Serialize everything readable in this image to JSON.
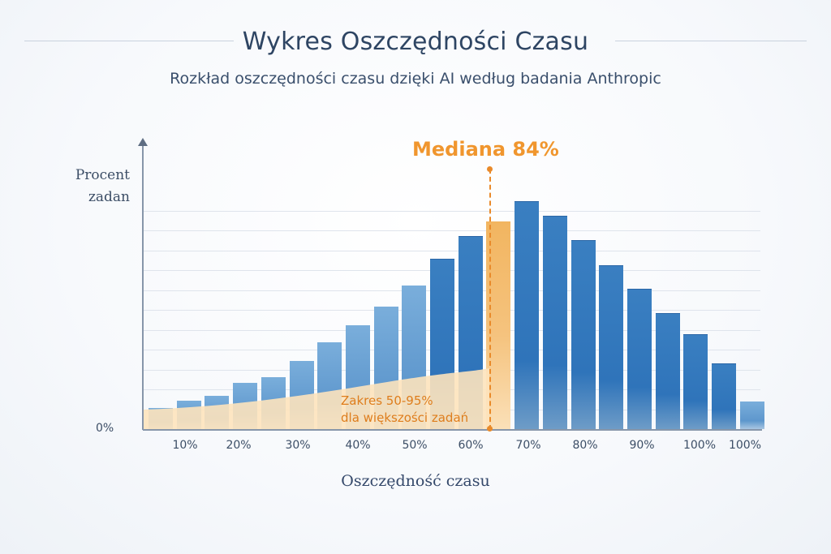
{
  "header": {
    "title": "Wykres Oszczędności Czasu",
    "subtitle": "Rozkład oszczędności czasu dzięki AI według badania Anthropic"
  },
  "annotations": {
    "median_label": "Mediana 84%",
    "range_label_line1": "Zakres 50-95%",
    "range_label_line2": "dla większości zadań"
  },
  "axes": {
    "y_label_line1": "Procent",
    "y_label_line2": "zadan",
    "y_zero": "0%",
    "x_label": "Oszczędność czasu",
    "x_ticks": [
      "10%",
      "20%",
      "30%",
      "40%",
      "50%",
      "60%",
      "70%",
      "80%",
      "90%",
      "100%",
      "100%"
    ]
  },
  "colors": {
    "bar_blue": "#2f74ba",
    "bar_light_blue": "#6fa6d6",
    "median_orange": "#f0962e",
    "range_fill": "#fde3bd",
    "title": "#2e4563"
  },
  "chart_data": {
    "type": "bar",
    "title": "Wykres Oszczędności Czasu",
    "subtitle": "Rozkład oszczędności czasu dzięki AI według badania Anthropic",
    "xlabel": "Oszczędność czasu",
    "ylabel": "Procent zadan",
    "x_tick_labels": [
      "10%",
      "20%",
      "30%",
      "40%",
      "50%",
      "60%",
      "70%",
      "80%",
      "90%",
      "100%",
      "100%"
    ],
    "y_tick_labels": [
      "0%"
    ],
    "grid": true,
    "bar_count": 22,
    "bar_heights_relative": [
      26,
      35,
      41,
      57,
      64,
      84,
      107,
      128,
      151,
      177,
      210,
      238,
      256,
      281,
      263,
      233,
      202,
      173,
      143,
      117,
      81,
      34
    ],
    "bar_colors": [
      "light",
      "light",
      "light",
      "light",
      "light",
      "light",
      "light",
      "light",
      "light",
      "light",
      "blue",
      "blue",
      "orange",
      "blue",
      "blue",
      "blue",
      "blue",
      "blue",
      "blue",
      "blue",
      "blue",
      "light"
    ],
    "highlighted_bar_index": 12,
    "annotations": [
      {
        "text": "Mediana 84%",
        "type": "vertical-dashed-line",
        "x_bar_index": 12
      },
      {
        "text": "Zakres 50-95% dla większości zadań",
        "type": "shaded-area"
      }
    ],
    "legend": null
  }
}
